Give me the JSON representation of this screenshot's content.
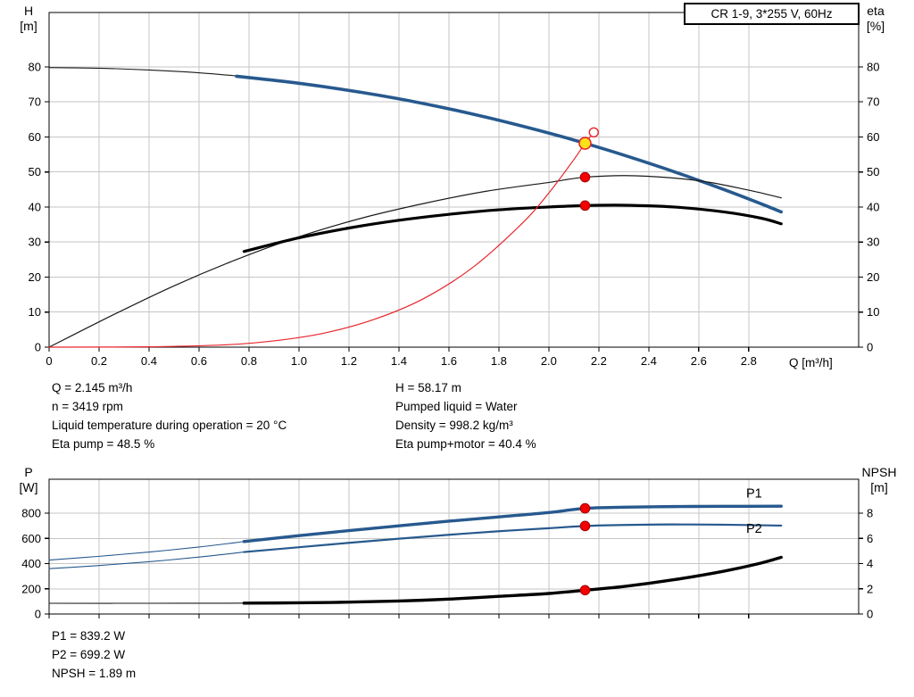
{
  "title_box": "CR 1-9, 3*255 V, 60Hz",
  "colors": {
    "curve_blue": "#27598e",
    "curve_black": "#000000",
    "curve_red": "#e8262d",
    "marker_red": "#f40000",
    "marker_red_edge": "#a00000",
    "marker_yellow": "#ffe11a",
    "label_blue": "#27598e",
    "grid": "#c6c6c6",
    "axis": "#000000"
  },
  "info_top": {
    "left": [
      "Q = 2.145 m³/h",
      "n = 3419 rpm",
      "Liquid temperature during operation = 20 °C",
      "Eta pump = 48.5 %"
    ],
    "right": [
      "H = 58.17 m",
      "Pumped liquid = Water",
      "Density = 998.2 kg/m³",
      "Eta pump+motor = 40.4 %"
    ]
  },
  "info_bottom": [
    "P1 = 839.2 W",
    "P2 = 699.2 W",
    "NPSH = 1.89 m"
  ],
  "chart_data": [
    {
      "type": "line",
      "name": "hq-eta-chart",
      "xlabel": "Q [m³/h]",
      "ylabel_left": [
        "H",
        "[m]"
      ],
      "ylabel_right": [
        "eta",
        "[%]"
      ],
      "xlim": [
        0,
        3.24
      ],
      "ylim_left": [
        0,
        95.5
      ],
      "ylim_right": [
        0,
        95.5
      ],
      "xticks": [
        [
          0,
          "0"
        ],
        [
          0.2,
          "0.2"
        ],
        [
          0.4,
          "0.4"
        ],
        [
          0.6,
          "0.6"
        ],
        [
          0.8,
          "0.8"
        ],
        [
          1,
          "1.0"
        ],
        [
          1.2,
          "1.2"
        ],
        [
          1.4,
          "1.4"
        ],
        [
          1.6,
          "1.6"
        ],
        [
          1.8,
          "1.8"
        ],
        [
          2,
          "2.0"
        ],
        [
          2.2,
          "2.2"
        ],
        [
          2.4,
          "2.4"
        ],
        [
          2.6,
          "2.6"
        ],
        [
          2.8,
          "2.8"
        ]
      ],
      "yticks_left": [
        [
          0,
          "0"
        ],
        [
          10,
          "10"
        ],
        [
          20,
          "20"
        ],
        [
          30,
          "30"
        ],
        [
          40,
          "40"
        ],
        [
          50,
          "50"
        ],
        [
          60,
          "60"
        ],
        [
          70,
          "70"
        ],
        [
          80,
          "80"
        ]
      ],
      "yticks_right": [
        [
          0,
          "0"
        ],
        [
          10,
          "10"
        ],
        [
          20,
          "20"
        ],
        [
          30,
          "30"
        ],
        [
          40,
          "40"
        ],
        [
          50,
          "50"
        ],
        [
          60,
          "60"
        ],
        [
          70,
          "70"
        ],
        [
          80,
          "80"
        ]
      ],
      "series": [
        {
          "name": "head-curve-thin",
          "color": "#1a1a1a",
          "width": 1.1,
          "axis": "left",
          "points": [
            [
              0,
              79.8
            ],
            [
              0.2,
              79.6
            ],
            [
              0.4,
              79.1
            ],
            [
              0.6,
              78.3
            ],
            [
              0.78,
              77.2
            ]
          ]
        },
        {
          "name": "head-curve",
          "color": "#27598e",
          "width": 3.6,
          "axis": "left",
          "points": [
            [
              0.75,
              77.3
            ],
            [
              1.0,
              75.3
            ],
            [
              1.25,
              72.7
            ],
            [
              1.5,
              69.5
            ],
            [
              1.75,
              65.6
            ],
            [
              2.0,
              61.1
            ],
            [
              2.145,
              58.17
            ],
            [
              2.3,
              54.8
            ],
            [
              2.5,
              50.1
            ],
            [
              2.7,
              45.0
            ],
            [
              2.85,
              40.9
            ],
            [
              2.93,
              38.6
            ]
          ]
        },
        {
          "name": "eta-pump-curve",
          "color": "#1a1a1a",
          "width": 1.2,
          "axis": "right",
          "points": [
            [
              0,
              0
            ],
            [
              0.25,
              9
            ],
            [
              0.5,
              17.5
            ],
            [
              0.75,
              25
            ],
            [
              1.0,
              31.5
            ],
            [
              1.25,
              36.8
            ],
            [
              1.5,
              41.0
            ],
            [
              1.75,
              44.5
            ],
            [
              2.0,
              47.0
            ],
            [
              2.145,
              48.5
            ],
            [
              2.35,
              48.9
            ],
            [
              2.6,
              47.5
            ],
            [
              2.8,
              44.8
            ],
            [
              2.93,
              42.6
            ]
          ]
        },
        {
          "name": "eta-pump-motor-curve",
          "color": "#000000",
          "width": 3.2,
          "axis": "right",
          "points": [
            [
              0.78,
              27.3
            ],
            [
              1.0,
              31.2
            ],
            [
              1.2,
              34.0
            ],
            [
              1.4,
              36.2
            ],
            [
              1.6,
              37.9
            ],
            [
              1.8,
              39.2
            ],
            [
              2.0,
              40.0
            ],
            [
              2.145,
              40.4
            ],
            [
              2.3,
              40.5
            ],
            [
              2.5,
              40.0
            ],
            [
              2.7,
              38.6
            ],
            [
              2.85,
              36.8
            ],
            [
              2.93,
              35.2
            ]
          ]
        },
        {
          "name": "system-curve",
          "color": "#e8262d",
          "width": 1.2,
          "axis": "left",
          "points": [
            [
              0,
              0
            ],
            [
              0.4,
              0.1
            ],
            [
              0.7,
              0.65
            ],
            [
              0.9,
              1.8
            ],
            [
              1.1,
              4.0
            ],
            [
              1.3,
              7.9
            ],
            [
              1.5,
              13.9
            ],
            [
              1.7,
              23.0
            ],
            [
              1.9,
              35.8
            ],
            [
              2.0,
              44.0
            ],
            [
              2.1,
              53.5
            ],
            [
              2.145,
              58.17
            ],
            [
              2.18,
              61.3
            ]
          ]
        }
      ],
      "markers": [
        {
          "type": "open",
          "x": 2.18,
          "y": 61.3,
          "axis": "left",
          "name": "system-curve-end-marker"
        },
        {
          "type": "dot",
          "x": 2.145,
          "y": 48.5,
          "axis": "right",
          "name": "eta-pump-point"
        },
        {
          "type": "dot",
          "x": 2.145,
          "y": 40.4,
          "axis": "right",
          "name": "eta-pump-motor-point"
        },
        {
          "type": "duty",
          "x": 2.145,
          "y": 58.17,
          "axis": "left",
          "name": "duty-point"
        }
      ]
    },
    {
      "type": "line",
      "name": "power-npsh-chart",
      "xlabel": "",
      "ylabel_left": [
        "P",
        "[W]"
      ],
      "ylabel_right": [
        "NPSH",
        "[m]"
      ],
      "xlim": [
        0,
        3.24
      ],
      "ylim_left": [
        0,
        1070
      ],
      "ylim_right": [
        0,
        10.7
      ],
      "xticks": [
        [
          0,
          "0"
        ],
        [
          0.2,
          "0.2"
        ],
        [
          0.4,
          "0.4"
        ],
        [
          0.6,
          "0.6"
        ],
        [
          0.8,
          "0.8"
        ],
        [
          1,
          "1.0"
        ],
        [
          1.2,
          "1.2"
        ],
        [
          1.4,
          "1.4"
        ],
        [
          1.6,
          "1.6"
        ],
        [
          1.8,
          "1.8"
        ],
        [
          2,
          "2.0"
        ],
        [
          2.2,
          "2.2"
        ],
        [
          2.4,
          "2.4"
        ],
        [
          2.6,
          "2.6"
        ],
        [
          2.8,
          "2.8"
        ]
      ],
      "yticks_left": [
        [
          0,
          "0"
        ],
        [
          200,
          "200"
        ],
        [
          400,
          "400"
        ],
        [
          600,
          "600"
        ],
        [
          800,
          "800"
        ]
      ],
      "yticks_right": [
        [
          0,
          "0"
        ],
        [
          2,
          "2"
        ],
        [
          4,
          "4"
        ],
        [
          6,
          "6"
        ],
        [
          8,
          "8"
        ]
      ],
      "series": [
        {
          "name": "p1-curve-thin",
          "color": "#27598e",
          "width": 1.1,
          "axis": "left",
          "points": [
            [
              0,
              428
            ],
            [
              0.2,
              458
            ],
            [
              0.4,
              492
            ],
            [
              0.6,
              532
            ],
            [
              0.78,
              575
            ]
          ]
        },
        {
          "name": "p1-curve",
          "color": "#27598e",
          "width": 3.4,
          "axis": "left",
          "points": [
            [
              0.78,
              575
            ],
            [
              1.0,
              622
            ],
            [
              1.2,
              662
            ],
            [
              1.4,
              700
            ],
            [
              1.6,
              737
            ],
            [
              1.8,
              771
            ],
            [
              2.0,
              806
            ],
            [
              2.145,
              839
            ],
            [
              2.3,
              848
            ],
            [
              2.5,
              853
            ],
            [
              2.7,
              855
            ],
            [
              2.93,
              856
            ]
          ]
        },
        {
          "name": "p2-curve-thin",
          "color": "#27598e",
          "width": 1.1,
          "axis": "left",
          "points": [
            [
              0,
              360
            ],
            [
              0.2,
              385
            ],
            [
              0.4,
              415
            ],
            [
              0.6,
              452
            ],
            [
              0.78,
              492
            ]
          ]
        },
        {
          "name": "p2-curve",
          "color": "#27598e",
          "width": 2.2,
          "axis": "left",
          "points": [
            [
              0.78,
              492
            ],
            [
              1.0,
              530
            ],
            [
              1.2,
              565
            ],
            [
              1.4,
              598
            ],
            [
              1.6,
              629
            ],
            [
              1.8,
              657
            ],
            [
              2.0,
              681
            ],
            [
              2.145,
              699
            ],
            [
              2.3,
              707
            ],
            [
              2.5,
              711
            ],
            [
              2.7,
              709
            ],
            [
              2.93,
              702
            ]
          ]
        },
        {
          "name": "npsh-curve-thin",
          "color": "#1a1a1a",
          "width": 1.1,
          "axis": "right",
          "points": [
            [
              0,
              0.85
            ],
            [
              0.4,
              0.85
            ],
            [
              0.78,
              0.86
            ]
          ]
        },
        {
          "name": "npsh-curve",
          "color": "#000000",
          "width": 3.4,
          "axis": "right",
          "points": [
            [
              0.78,
              0.86
            ],
            [
              1.0,
              0.89
            ],
            [
              1.2,
              0.94
            ],
            [
              1.4,
              1.03
            ],
            [
              1.6,
              1.18
            ],
            [
              1.8,
              1.4
            ],
            [
              2.0,
              1.63
            ],
            [
              2.145,
              1.89
            ],
            [
              2.3,
              2.18
            ],
            [
              2.5,
              2.72
            ],
            [
              2.7,
              3.4
            ],
            [
              2.85,
              4.05
            ],
            [
              2.93,
              4.5
            ]
          ]
        }
      ],
      "markers": [
        {
          "type": "dot",
          "x": 2.145,
          "y": 839,
          "axis": "left",
          "name": "p1-point"
        },
        {
          "type": "dot",
          "x": 2.145,
          "y": 699,
          "axis": "left",
          "name": "p2-point"
        },
        {
          "type": "dot",
          "x": 2.145,
          "y": 1.89,
          "axis": "right",
          "name": "npsh-point"
        },
        {
          "type": "text",
          "x": 2.79,
          "y": 925,
          "axis": "left",
          "text": "P1",
          "name": "p1-label"
        },
        {
          "type": "text",
          "x": 2.79,
          "y": 645,
          "axis": "left",
          "text": "P2",
          "name": "p2-label"
        }
      ]
    }
  ]
}
